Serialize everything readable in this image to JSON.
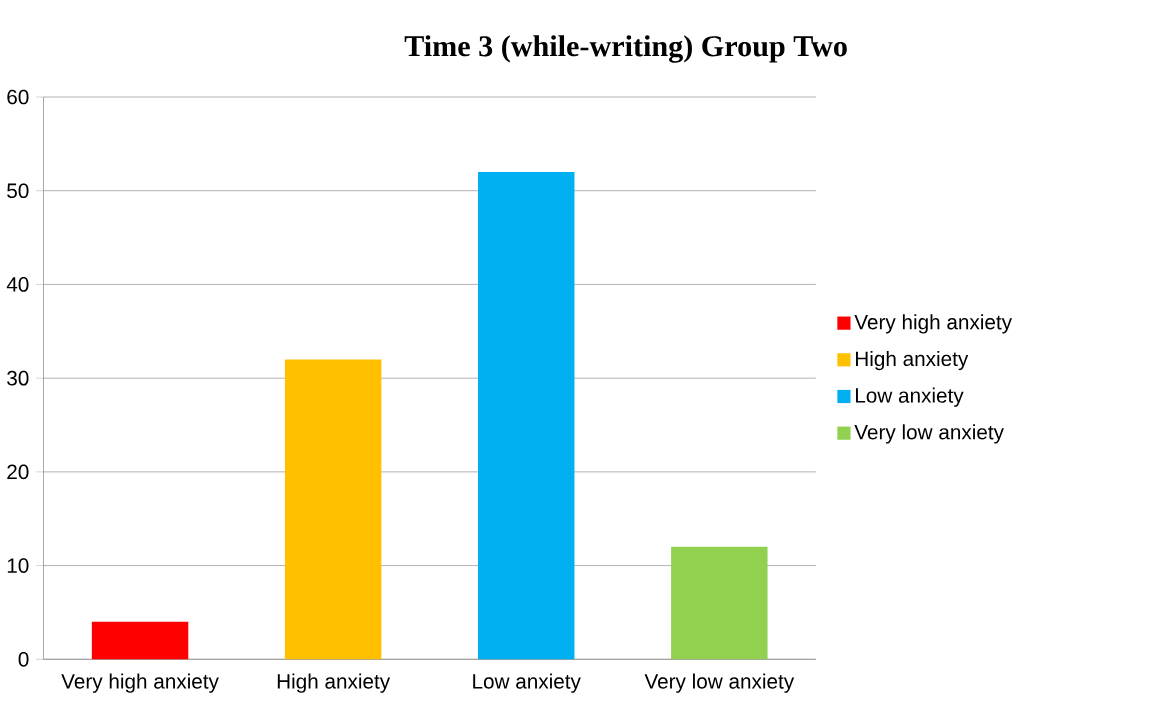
{
  "chart_data": {
    "type": "bar",
    "title": "Time 3 (while-writing) Group Two",
    "categories": [
      "Very high anxiety",
      "High anxiety",
      "Low anxiety",
      "Very low anxiety"
    ],
    "series": [
      {
        "name": "Very high anxiety",
        "color": "#ff0000",
        "values": [
          4,
          null,
          null,
          null
        ]
      },
      {
        "name": "High anxiety",
        "color": "#ffc000",
        "values": [
          null,
          32,
          null,
          null
        ]
      },
      {
        "name": "Low anxiety",
        "color": "#00b0f0",
        "values": [
          null,
          null,
          52,
          null
        ]
      },
      {
        "name": "Very low anxiety",
        "color": "#92d050",
        "values": [
          null,
          null,
          null,
          12
        ]
      }
    ],
    "ylim": [
      0,
      60
    ],
    "yticks": [
      0,
      10,
      20,
      30,
      40,
      50,
      60
    ],
    "grid": "y",
    "legend": "right"
  }
}
